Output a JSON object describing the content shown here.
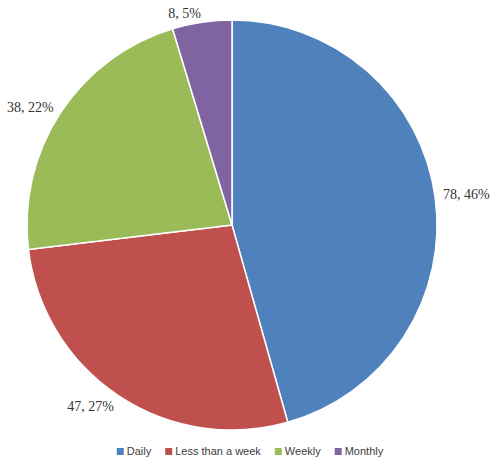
{
  "chart_data": {
    "type": "pie",
    "categories": [
      "Daily",
      "Less than a week",
      "Weekly",
      "Monthly"
    ],
    "values": [
      78,
      47,
      38,
      8
    ],
    "value_labels": [
      "78, 46%",
      "47, 27%",
      "38, 22%",
      "8, 5%"
    ],
    "colors": [
      "#4f81bd",
      "#c0504d",
      "#9bbb59",
      "#8064a2"
    ],
    "data_labels": true,
    "legend": "bottom"
  }
}
